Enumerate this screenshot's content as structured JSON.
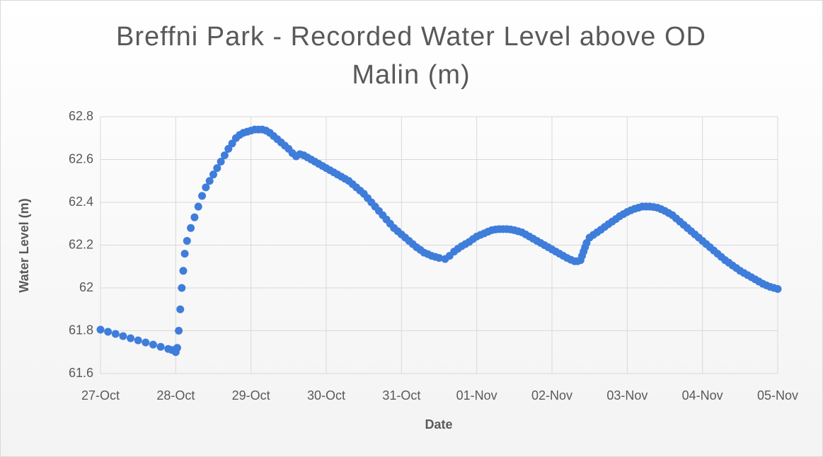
{
  "chart_data": {
    "type": "scatter",
    "title": "Breffni Park - Recorded Water Level above OD Malin (m)",
    "x_label": "Date",
    "y_label": "Water Level (m)",
    "color": "#3f7ddb",
    "grid": true,
    "xlim": [
      0,
      9
    ],
    "xticks": [
      {
        "value": 0,
        "label": "27-Oct"
      },
      {
        "value": 1,
        "label": "28-Oct"
      },
      {
        "value": 2,
        "label": "29-Oct"
      },
      {
        "value": 3,
        "label": "30-Oct"
      },
      {
        "value": 4,
        "label": "31-Oct"
      },
      {
        "value": 5,
        "label": "01-Nov"
      },
      {
        "value": 6,
        "label": "02-Nov"
      },
      {
        "value": 7,
        "label": "03-Nov"
      },
      {
        "value": 8,
        "label": "04-Nov"
      },
      {
        "value": 9,
        "label": "05-Nov"
      }
    ],
    "ylim": [
      61.6,
      62.8
    ],
    "yticks": [
      61.6,
      61.8,
      62,
      62.2,
      62.4,
      62.6,
      62.8
    ],
    "x": [
      0,
      0.1,
      0.2,
      0.3,
      0.4,
      0.5,
      0.6,
      0.7,
      0.8,
      0.9,
      0.95,
      1.0,
      1.02,
      1.04,
      1.06,
      1.08,
      1.1,
      1.12,
      1.15,
      1.2,
      1.25,
      1.3,
      1.35,
      1.4,
      1.45,
      1.5,
      1.55,
      1.6,
      1.65,
      1.7,
      1.75,
      1.8,
      1.85,
      1.9,
      1.95,
      2.0,
      2.05,
      2.1,
      2.15,
      2.2,
      2.25,
      2.3,
      2.35,
      2.4,
      2.45,
      2.5,
      2.55,
      2.6,
      2.65,
      2.7,
      2.75,
      2.8,
      2.85,
      2.9,
      2.95,
      3.0,
      3.05,
      3.1,
      3.15,
      3.2,
      3.25,
      3.3,
      3.35,
      3.4,
      3.45,
      3.5,
      3.55,
      3.6,
      3.65,
      3.7,
      3.75,
      3.8,
      3.85,
      3.9,
      3.95,
      4.0,
      4.05,
      4.1,
      4.15,
      4.2,
      4.25,
      4.3,
      4.35,
      4.4,
      4.45,
      4.5,
      4.58,
      4.64,
      4.7,
      4.75,
      4.8,
      4.85,
      4.9,
      4.95,
      5.0,
      5.05,
      5.1,
      5.15,
      5.2,
      5.25,
      5.3,
      5.35,
      5.4,
      5.45,
      5.5,
      5.55,
      5.6,
      5.65,
      5.7,
      5.75,
      5.8,
      5.85,
      5.9,
      5.95,
      6.0,
      6.05,
      6.1,
      6.15,
      6.2,
      6.25,
      6.3,
      6.34,
      6.38,
      6.4,
      6.42,
      6.44,
      6.46,
      6.5,
      6.55,
      6.6,
      6.65,
      6.7,
      6.75,
      6.8,
      6.85,
      6.9,
      6.95,
      7.0,
      7.05,
      7.1,
      7.15,
      7.2,
      7.25,
      7.3,
      7.35,
      7.4,
      7.45,
      7.5,
      7.55,
      7.6,
      7.65,
      7.7,
      7.75,
      7.8,
      7.85,
      7.9,
      7.95,
      8.0,
      8.05,
      8.1,
      8.15,
      8.2,
      8.25,
      8.3,
      8.35,
      8.4,
      8.45,
      8.5,
      8.55,
      8.6,
      8.65,
      8.7,
      8.75,
      8.8,
      8.85,
      8.9,
      8.95,
      9.0
    ],
    "values": [
      61.805,
      61.795,
      61.785,
      61.775,
      61.765,
      61.755,
      61.745,
      61.735,
      61.725,
      61.715,
      61.71,
      61.7,
      61.72,
      61.8,
      61.9,
      62.0,
      62.08,
      62.16,
      62.22,
      62.28,
      62.33,
      62.38,
      62.43,
      62.47,
      62.5,
      62.53,
      62.56,
      62.59,
      62.62,
      62.65,
      62.675,
      62.7,
      62.715,
      62.725,
      62.73,
      62.735,
      62.74,
      62.74,
      62.74,
      62.735,
      62.725,
      62.71,
      62.695,
      62.68,
      62.665,
      62.65,
      62.63,
      62.615,
      62.625,
      62.62,
      62.61,
      62.6,
      62.59,
      62.58,
      62.57,
      62.56,
      62.55,
      62.54,
      62.53,
      62.52,
      62.51,
      62.5,
      62.485,
      62.47,
      62.455,
      62.44,
      62.42,
      62.4,
      62.38,
      62.36,
      62.34,
      62.32,
      62.3,
      62.28,
      62.265,
      62.25,
      62.235,
      62.22,
      62.205,
      62.19,
      62.178,
      62.165,
      62.158,
      62.15,
      62.145,
      62.14,
      62.135,
      62.15,
      62.17,
      62.183,
      62.195,
      62.205,
      62.215,
      62.228,
      62.24,
      62.248,
      62.255,
      62.263,
      62.27,
      62.273,
      62.275,
      62.275,
      62.275,
      62.273,
      62.27,
      62.265,
      62.26,
      62.25,
      62.24,
      62.23,
      62.22,
      62.21,
      62.2,
      62.19,
      62.18,
      62.17,
      62.16,
      62.15,
      62.14,
      62.132,
      62.125,
      62.125,
      62.13,
      62.15,
      62.17,
      62.19,
      62.21,
      62.235,
      62.248,
      62.26,
      62.272,
      62.285,
      62.298,
      62.31,
      62.322,
      62.335,
      62.345,
      62.355,
      62.363,
      62.37,
      62.375,
      62.38,
      62.38,
      62.38,
      62.378,
      62.375,
      62.368,
      62.36,
      62.35,
      62.34,
      62.325,
      62.31,
      62.295,
      62.28,
      62.265,
      62.25,
      62.235,
      62.22,
      62.205,
      62.19,
      62.175,
      62.16,
      62.145,
      62.13,
      62.118,
      62.105,
      62.093,
      62.08,
      62.07,
      62.06,
      62.05,
      62.04,
      62.03,
      62.02,
      62.012,
      62.005,
      62.0,
      61.995
    ]
  }
}
